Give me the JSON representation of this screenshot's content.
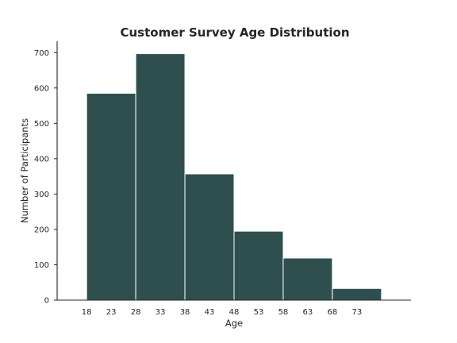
{
  "chart_data": {
    "type": "bar",
    "title": "Customer Survey Age Distribution",
    "xlabel": "Age",
    "ylabel": "Number of Participants",
    "bin_edges": [
      18,
      28,
      38,
      48,
      58,
      68,
      78
    ],
    "values": [
      585,
      697,
      357,
      195,
      119,
      33
    ],
    "x_ticks": [
      18,
      23,
      28,
      33,
      38,
      43,
      48,
      53,
      58,
      63,
      68,
      73
    ],
    "y_ticks": [
      0,
      100,
      200,
      300,
      400,
      500,
      600,
      700
    ],
    "xlim": [
      12,
      84
    ],
    "ylim": [
      0,
      732
    ],
    "bar_color": "#2f4f4f",
    "grid": false
  }
}
